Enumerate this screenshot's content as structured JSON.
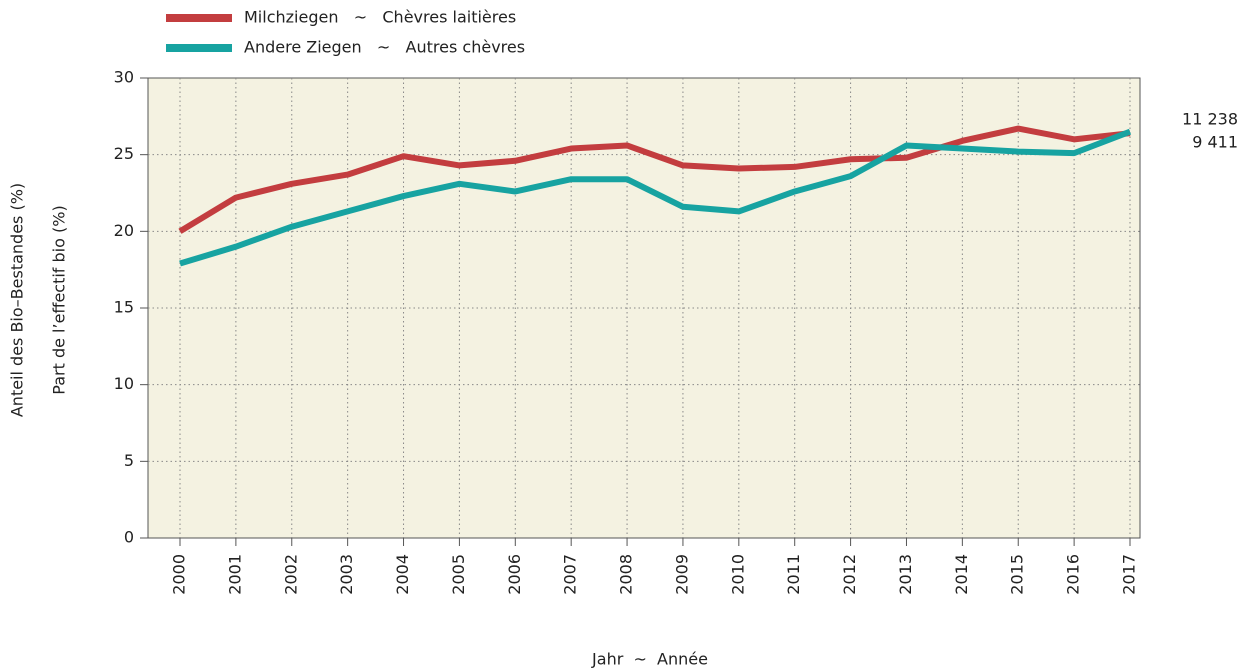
{
  "chart_data": {
    "type": "line",
    "y_label": [
      "Anteil des Bio–Bestandes (%)",
      "Part de l’effectif bio (%)"
    ],
    "x_label": "Jahr  ~  Année",
    "categories": [
      "2000",
      "2001",
      "2002",
      "2003",
      "2004",
      "2005",
      "2006",
      "2007",
      "2008",
      "2009",
      "2010",
      "2011",
      "2012",
      "2013",
      "2014",
      "2015",
      "2016",
      "2017"
    ],
    "series": [
      {
        "name": "Milchziegen   ~   Chèvres laitières",
        "color": "#c33d3f",
        "values": [
          20.0,
          22.2,
          23.1,
          23.7,
          24.9,
          24.3,
          24.6,
          25.4,
          25.6,
          24.3,
          24.1,
          24.2,
          24.7,
          24.8,
          25.9,
          26.7,
          26.0,
          26.4
        ]
      },
      {
        "name": "Andere Ziegen   ~   Autres chèvres",
        "color": "#17a3a1",
        "values": [
          17.9,
          19.0,
          20.3,
          21.3,
          22.3,
          23.1,
          22.6,
          23.4,
          23.4,
          21.6,
          21.3,
          22.6,
          23.6,
          25.6,
          25.4,
          25.2,
          25.1,
          26.5
        ]
      }
    ],
    "annotations": [
      "11 238",
      "9 411"
    ],
    "ylim": [
      0,
      30
    ],
    "yticks": [
      0,
      5,
      10,
      15,
      20,
      25,
      30
    ],
    "grid": true
  }
}
